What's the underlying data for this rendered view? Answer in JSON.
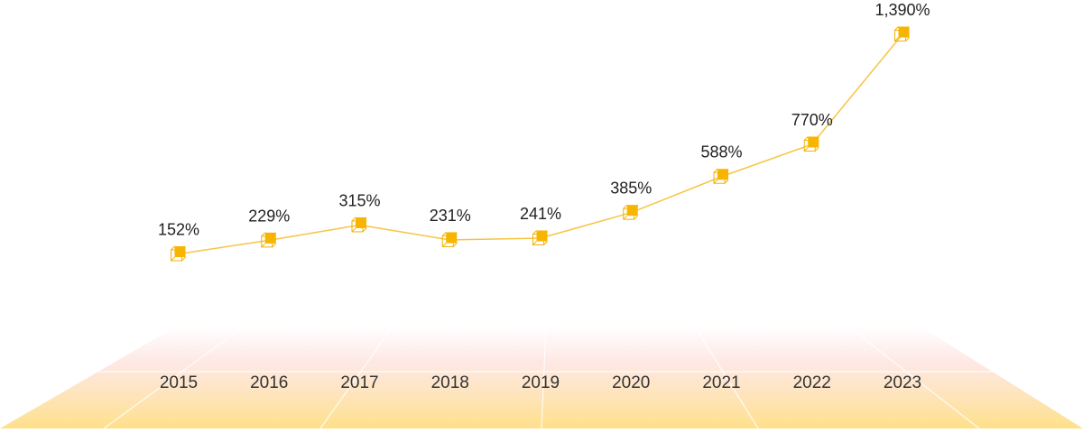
{
  "chart_data": {
    "type": "line",
    "title": "",
    "xlabel": "",
    "ylabel": "",
    "categories": [
      "2015",
      "2016",
      "2017",
      "2018",
      "2019",
      "2020",
      "2021",
      "2022",
      "2023"
    ],
    "series": [
      {
        "values": [
          152,
          229,
          315,
          231,
          241,
          385,
          588,
          770,
          1390
        ],
        "labels": [
          "152%",
          "229%",
          "315%",
          "231%",
          "241%",
          "385%",
          "588%",
          "770%",
          "1,390%"
        ]
      }
    ],
    "grid": false,
    "legend": "none"
  },
  "colors": {
    "line": "#F5C542",
    "marker": "#F7B500",
    "marker_outline": "#F2B100",
    "floor_top": "#FDE4E0",
    "floor_bottom": "#FFE08A",
    "floor_grid": "#FFFFFF"
  }
}
